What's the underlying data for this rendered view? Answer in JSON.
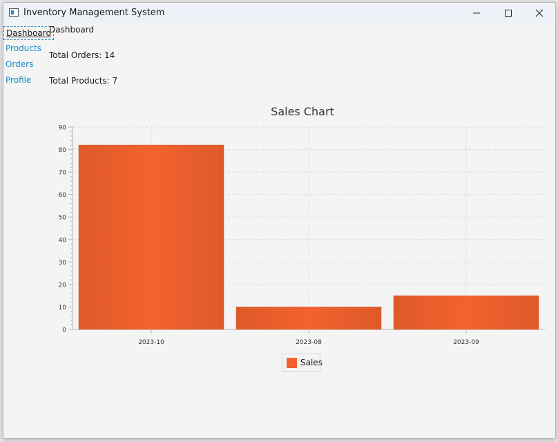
{
  "window": {
    "title": "Inventory Management System"
  },
  "nav": {
    "items": [
      {
        "label": "Dashboard",
        "active": true
      },
      {
        "label": "Products",
        "active": false
      },
      {
        "label": "Orders",
        "active": false
      },
      {
        "label": "Profile",
        "active": false
      }
    ]
  },
  "main": {
    "heading": "Dashboard",
    "total_orders": "Total Orders: 14",
    "total_products": "Total Products: 7"
  },
  "colors": {
    "bar": "#f2622d",
    "link": "#1a8ec7",
    "grid": "#dcdcdc"
  },
  "chart_data": {
    "type": "bar",
    "title": "Sales Chart",
    "categories": [
      "2023-10",
      "2023-08",
      "2023-09"
    ],
    "series": [
      {
        "name": "Sales",
        "values": [
          82,
          10,
          15
        ]
      }
    ],
    "ylim": [
      0,
      90
    ],
    "yticks": [
      0,
      10,
      20,
      30,
      40,
      50,
      60,
      70,
      80,
      90
    ],
    "grid": true,
    "legend_position": "bottom"
  }
}
